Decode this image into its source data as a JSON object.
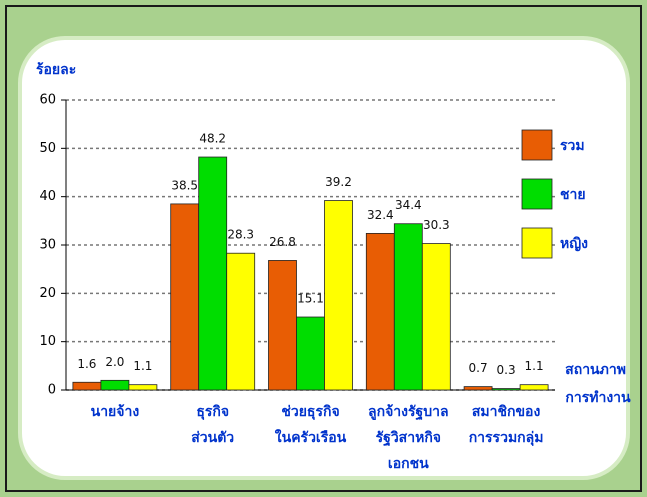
{
  "chart_data": {
    "type": "bar",
    "y_label": "ร้อยละ",
    "x_label": [
      "สถานภาพ",
      "การทำงาน"
    ],
    "categories": [
      [
        "นายจ้าง"
      ],
      [
        "ธุรกิจ",
        "ส่วนตัว"
      ],
      [
        "ช่วยธุรกิจ",
        "ในครัวเรือน"
      ],
      [
        "ลูกจ้างรัฐบาล",
        "รัฐวิสาหกิจ",
        "เอกชน"
      ],
      [
        "สมาชิกของ",
        "การรวมกลุ่ม"
      ]
    ],
    "series": [
      {
        "name": "รวม",
        "color": "#e85d04",
        "values": [
          1.6,
          38.5,
          26.8,
          32.4,
          0.7
        ],
        "value_labels": [
          "1.6",
          "38.5",
          "26.8",
          "32.4",
          "0.7"
        ]
      },
      {
        "name": "ชาย",
        "color": "#00dd00",
        "values": [
          2.0,
          48.2,
          15.1,
          34.4,
          0.3
        ],
        "value_labels": [
          "2.0",
          "48.2",
          "15.1",
          "34.4",
          "0.3"
        ]
      },
      {
        "name": "หญิง",
        "color": "#ffff00",
        "values": [
          1.1,
          28.3,
          39.2,
          30.3,
          1.1
        ],
        "value_labels": [
          "1.1",
          "28.3",
          "39.2",
          "30.3",
          "1.1"
        ]
      }
    ],
    "ylim": [
      0,
      60
    ],
    "yticks": [
      0,
      10,
      20,
      30,
      40,
      50,
      60
    ],
    "grid": true,
    "legend": "right"
  }
}
